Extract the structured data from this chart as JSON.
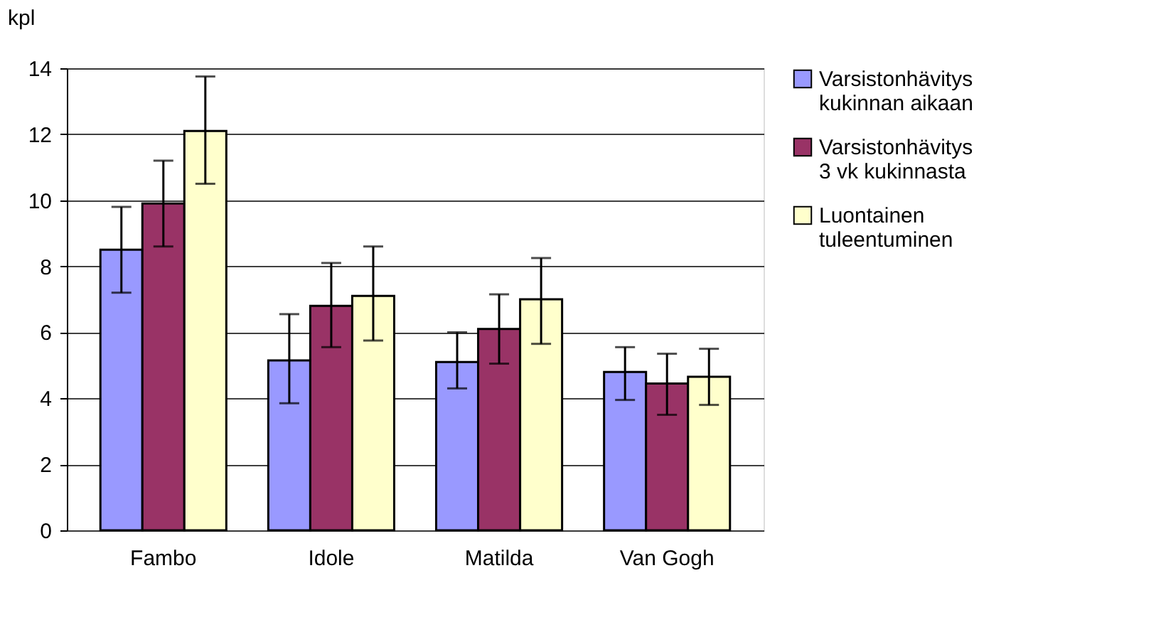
{
  "chart_data": {
    "type": "bar",
    "ylabel": "kpl",
    "categories": [
      "Fambo",
      "Idole",
      "Matilda",
      "Van Gogh"
    ],
    "series": [
      {
        "name": "Varsistonhävitys kukinnan aikaan",
        "color": "#9999ff",
        "values": [
          8.5,
          5.15,
          5.1,
          4.8
        ],
        "errors": [
          [
            7.2,
            9.8
          ],
          [
            3.85,
            6.55
          ],
          [
            4.3,
            6.0
          ],
          [
            3.95,
            5.55
          ]
        ]
      },
      {
        "name": "Varsistonhävitys 3 vk kukinnasta",
        "color": "#993366",
        "values": [
          9.9,
          6.8,
          6.1,
          4.45
        ],
        "errors": [
          [
            8.6,
            11.2
          ],
          [
            5.55,
            8.1
          ],
          [
            5.05,
            7.15
          ],
          [
            3.5,
            5.35
          ]
        ]
      },
      {
        "name": "Luontainen tuleentuminen",
        "color": "#ffffcc",
        "values": [
          12.1,
          7.1,
          7.0,
          4.65
        ],
        "errors": [
          [
            10.5,
            13.75
          ],
          [
            5.75,
            8.6
          ],
          [
            5.65,
            8.25
          ],
          [
            3.8,
            5.5
          ]
        ]
      }
    ],
    "ylim": [
      0,
      14
    ],
    "yticks": [
      0,
      2,
      4,
      6,
      8,
      10,
      12,
      14
    ],
    "grid": "y",
    "legend": "right"
  }
}
